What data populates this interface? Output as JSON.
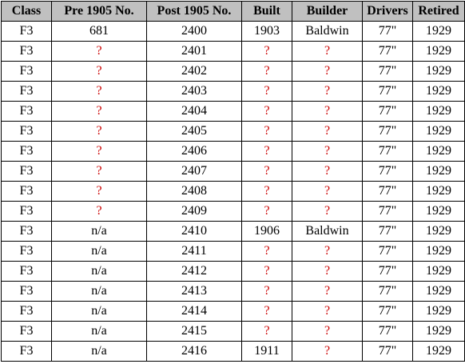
{
  "table": {
    "headers": [
      "Class",
      "Pre 1905 No.",
      "Post 1905 No.",
      "Built",
      "Builder",
      "Drivers",
      "Retired"
    ],
    "rows": [
      [
        "F3",
        "681",
        "2400",
        "1903",
        "Baldwin",
        "77\"",
        "1929"
      ],
      [
        "F3",
        "?",
        "2401",
        "?",
        "?",
        "77\"",
        "1929"
      ],
      [
        "F3",
        "?",
        "2402",
        "?",
        "?",
        "77\"",
        "1929"
      ],
      [
        "F3",
        "?",
        "2403",
        "?",
        "?",
        "77\"",
        "1929"
      ],
      [
        "F3",
        "?",
        "2404",
        "?",
        "?",
        "77\"",
        "1929"
      ],
      [
        "F3",
        "?",
        "2405",
        "?",
        "?",
        "77\"",
        "1929"
      ],
      [
        "F3",
        "?",
        "2406",
        "?",
        "?",
        "77\"",
        "1929"
      ],
      [
        "F3",
        "?",
        "2407",
        "?",
        "?",
        "77\"",
        "1929"
      ],
      [
        "F3",
        "?",
        "2408",
        "?",
        "?",
        "77\"",
        "1929"
      ],
      [
        "F3",
        "?",
        "2409",
        "?",
        "?",
        "77\"",
        "1929"
      ],
      [
        "F3",
        "n/a",
        "2410",
        "1906",
        "Baldwin",
        "77\"",
        "1929"
      ],
      [
        "F3",
        "n/a",
        "2411",
        "?",
        "?",
        "77\"",
        "1929"
      ],
      [
        "F3",
        "n/a",
        "2412",
        "?",
        "?",
        "77\"",
        "1929"
      ],
      [
        "F3",
        "n/a",
        "2413",
        "?",
        "?",
        "77\"",
        "1929"
      ],
      [
        "F3",
        "n/a",
        "2414",
        "?",
        "?",
        "77\"",
        "1929"
      ],
      [
        "F3",
        "n/a",
        "2415",
        "?",
        "?",
        "77\"",
        "1929"
      ],
      [
        "F3",
        "n/a",
        "2416",
        "1911",
        "?",
        "77\"",
        "1929"
      ]
    ]
  },
  "colors": {
    "header_bg": "#c0c0c0",
    "unknown_text": "#cc0000",
    "text": "#000000"
  }
}
